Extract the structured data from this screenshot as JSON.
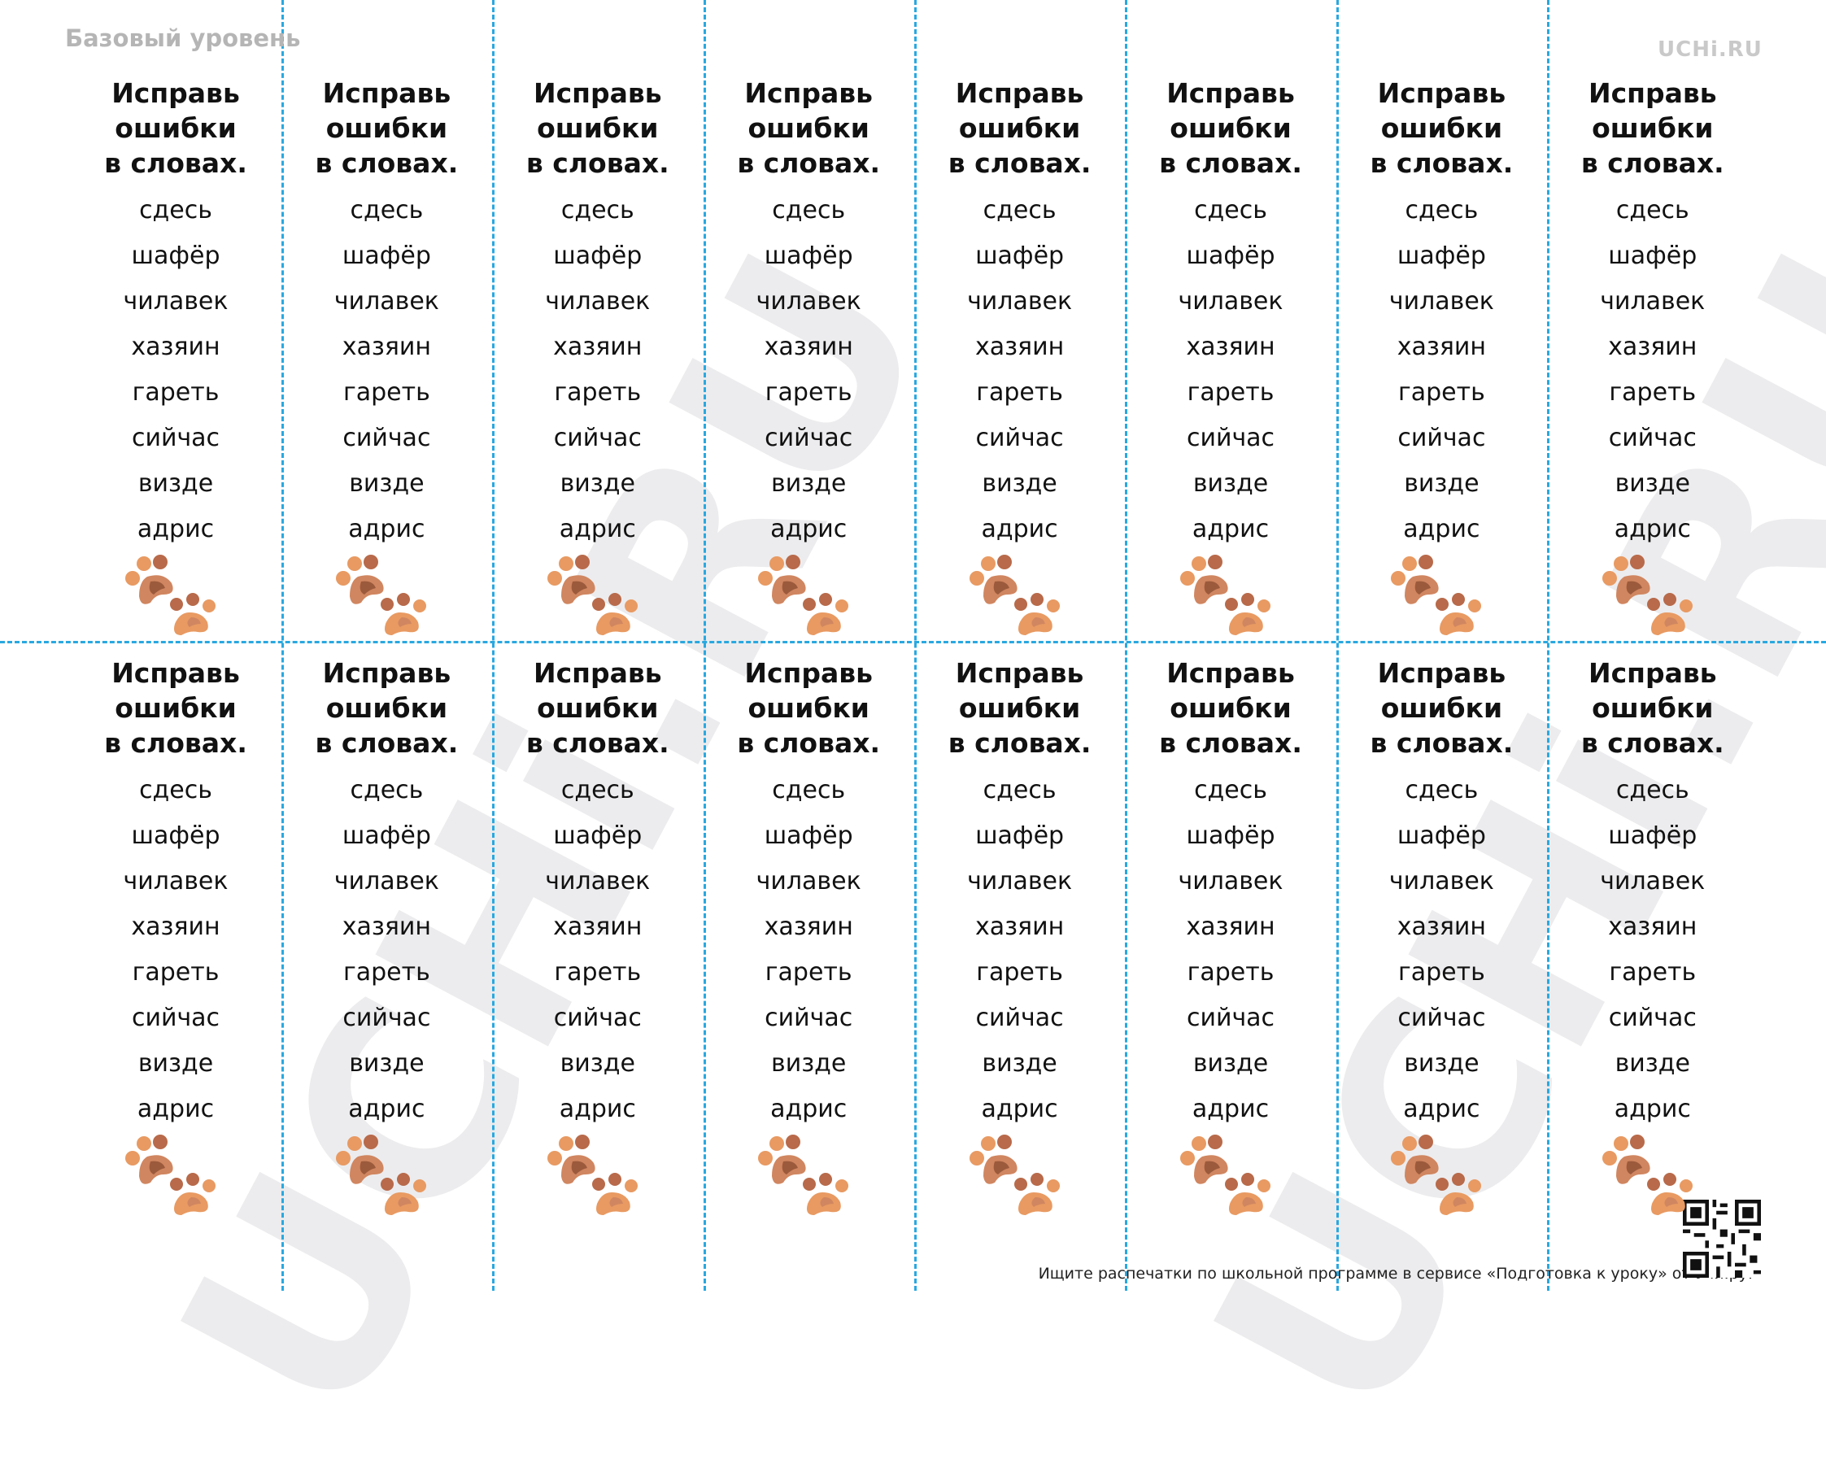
{
  "header": {
    "level": "Базовый уровень",
    "logo": "UCHi.RU"
  },
  "watermark": "UCHi.RU",
  "cards": [
    {
      "title_lines": [
        "Исправь",
        "ошибки",
        "в словах."
      ],
      "words": [
        "сдесь",
        "шафёр",
        "чилавек",
        "хазяин",
        "гареть",
        "сийчас",
        "визде",
        "адрис"
      ]
    },
    {
      "title_lines": [
        "Исправь",
        "ошибки",
        "в словах."
      ],
      "words": [
        "сдесь",
        "шафёр",
        "чилавек",
        "хазяин",
        "гареть",
        "сийчас",
        "визде",
        "адрис"
      ]
    },
    {
      "title_lines": [
        "Исправь",
        "ошибки",
        "в словах."
      ],
      "words": [
        "сдесь",
        "шафёр",
        "чилавек",
        "хазяин",
        "гареть",
        "сийчас",
        "визде",
        "адрис"
      ]
    },
    {
      "title_lines": [
        "Исправь",
        "ошибки",
        "в словах."
      ],
      "words": [
        "сдесь",
        "шафёр",
        "чилавек",
        "хазяин",
        "гареть",
        "сийчас",
        "визде",
        "адрис"
      ]
    },
    {
      "title_lines": [
        "Исправь",
        "ошибки",
        "в словах."
      ],
      "words": [
        "сдесь",
        "шафёр",
        "чилавек",
        "хазяин",
        "гареть",
        "сийчас",
        "визде",
        "адрис"
      ]
    },
    {
      "title_lines": [
        "Исправь",
        "ошибки",
        "в словах."
      ],
      "words": [
        "сдесь",
        "шафёр",
        "чилавек",
        "хазяин",
        "гареть",
        "сийчас",
        "визде",
        "адрис"
      ]
    },
    {
      "title_lines": [
        "Исправь",
        "ошибки",
        "в словах."
      ],
      "words": [
        "сдесь",
        "шафёр",
        "чилавек",
        "хазяин",
        "гареть",
        "сийчас",
        "визде",
        "адрис"
      ]
    },
    {
      "title_lines": [
        "Исправь",
        "ошибки",
        "в словах."
      ],
      "words": [
        "сдесь",
        "шафёр",
        "чилавек",
        "хазяин",
        "гареть",
        "сийчас",
        "визде",
        "адрис"
      ]
    },
    {
      "title_lines": [
        "Исправь",
        "ошибки",
        "в словах."
      ],
      "words": [
        "сдесь",
        "шафёр",
        "чилавек",
        "хазяин",
        "гареть",
        "сийчас",
        "визде",
        "адрис"
      ]
    },
    {
      "title_lines": [
        "Исправь",
        "ошибки",
        "в словах."
      ],
      "words": [
        "сдесь",
        "шафёр",
        "чилавек",
        "хазяин",
        "гареть",
        "сийчас",
        "визде",
        "адрис"
      ]
    },
    {
      "title_lines": [
        "Исправь",
        "ошибки",
        "в словах."
      ],
      "words": [
        "сдесь",
        "шафёр",
        "чилавек",
        "хазяин",
        "гареть",
        "сийчас",
        "визде",
        "адрис"
      ]
    },
    {
      "title_lines": [
        "Исправь",
        "ошибки",
        "в словах."
      ],
      "words": [
        "сдесь",
        "шафёр",
        "чилавек",
        "хазяин",
        "гареть",
        "сийчас",
        "визде",
        "адрис"
      ]
    },
    {
      "title_lines": [
        "Исправь",
        "ошибки",
        "в словах."
      ],
      "words": [
        "сдесь",
        "шафёр",
        "чилавек",
        "хазяин",
        "гареть",
        "сийчас",
        "визде",
        "адрис"
      ]
    },
    {
      "title_lines": [
        "Исправь",
        "ошибки",
        "в словах."
      ],
      "words": [
        "сдесь",
        "шафёр",
        "чилавек",
        "хазяин",
        "гареть",
        "сийчас",
        "визде",
        "адрис"
      ]
    },
    {
      "title_lines": [
        "Исправь",
        "ошибки",
        "в словах."
      ],
      "words": [
        "сдесь",
        "шафёр",
        "чилавек",
        "хазяин",
        "гареть",
        "сийчас",
        "визде",
        "адрис"
      ]
    },
    {
      "title_lines": [
        "Исправь",
        "ошибки",
        "в словах."
      ],
      "words": [
        "сдесь",
        "шафёр",
        "чилавек",
        "хазяин",
        "гареть",
        "сийчас",
        "визде",
        "адрис"
      ]
    }
  ],
  "footer": "Ищите распечатки по школьной программе в сервисе «Подготовка к уроку» от Учи.ру."
}
